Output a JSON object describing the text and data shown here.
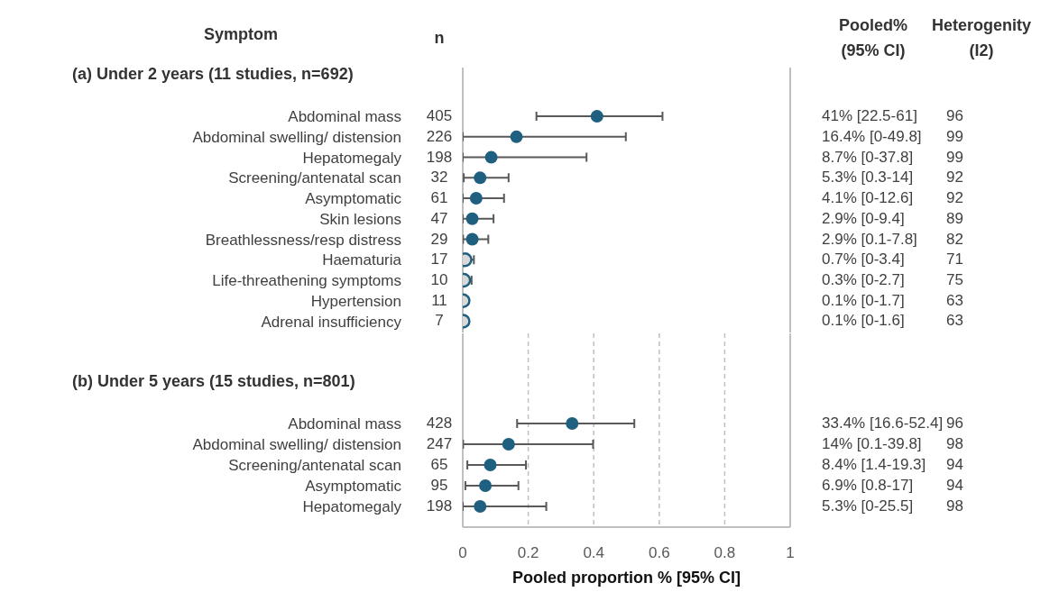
{
  "chart_data": [
    {
      "type": "scatter",
      "title": "(a) Under 2 years (11 studies, n=692)",
      "ylabel": "Symptom",
      "orientation": "horizontal",
      "tick_labels": "y",
      "grid": "x",
      "marker": "circle",
      "categories": [
        "Abdominal mass",
        "Abdominal swelling/ distension",
        "Hepatomegaly",
        "Screening/antenatal scan",
        "Asymptomatic",
        "Skin lesions",
        "Breathlessness/resp distress",
        "Haematuria",
        "Life-threathening symptoms",
        "Hypertension",
        "Adrenal insufficiency"
      ],
      "values": [
        0.41,
        0.164,
        0.087,
        0.053,
        0.041,
        0.029,
        0.029,
        0.007,
        0.003,
        0.001,
        0.001
      ],
      "errors": [
        [
          0.225,
          0.61
        ],
        [
          0,
          0.498
        ],
        [
          0,
          0.378
        ],
        [
          0.003,
          0.14
        ],
        [
          0,
          0.126
        ],
        [
          0,
          0.094
        ],
        [
          0.001,
          0.078
        ],
        [
          0,
          0.034
        ],
        [
          0,
          0.027
        ],
        [
          0,
          0.017
        ],
        [
          0,
          0.016
        ]
      ],
      "colors": [
        "#1f5f80",
        "#1f5f80",
        "#1f5f80",
        "#1f5f80",
        "#1f5f80",
        "#1f5f80",
        "#1f5f80",
        "#d9d9d9",
        "#d9d9d9",
        "#d9d9d9",
        "#d9d9d9"
      ],
      "xlim": [
        0,
        1
      ],
      "xticks": [
        0,
        0.2,
        0.4,
        0.6,
        0.8,
        1
      ],
      "annotations": [
        "405",
        "41% [22.5-61]",
        "96",
        "226",
        "16.4% [0-49.8]",
        "99",
        "198",
        "8.7% [0-37.8]",
        "99",
        "32",
        "5.3% [0.3-14]",
        "92",
        "61",
        "4.1% [0-12.6]",
        "92",
        "47",
        "2.9% [0-9.4]",
        "89",
        "29",
        "2.9% [0.1-7.8]",
        "82",
        "17",
        "0.7% [0-3.4]",
        "71",
        "10",
        "0.3% [0-2.7]",
        "75",
        "11",
        "0.1% [0-1.7]",
        "63",
        "7",
        "0.1% [0-1.6]",
        "63",
        "n",
        "Pooled% (95% CI)",
        "Heterogenity (I2)"
      ]
    },
    {
      "type": "scatter",
      "title": "(b) Under 5 years (15 studies, n=801)",
      "xlabel": "Pooled proportion % [95% CI]",
      "orientation": "horizontal",
      "grid": "x",
      "marker": "circle",
      "categories": [
        "Abdominal mass",
        "Abdominal swelling/ distension",
        "Screening/antenatal scan",
        "Asymptomatic",
        "Hepatomegaly"
      ],
      "values": [
        0.334,
        0.14,
        0.084,
        0.069,
        0.053
      ],
      "errors": [
        [
          0.166,
          0.524
        ],
        [
          0.001,
          0.398
        ],
        [
          0.014,
          0.193
        ],
        [
          0.008,
          0.17
        ],
        [
          0,
          0.255
        ]
      ],
      "colors": [
        "#1f5f80",
        "#1f5f80",
        "#1f5f80",
        "#1f5f80",
        "#1f5f80"
      ],
      "xlim": [
        0,
        1
      ],
      "xticks": [
        0,
        0.2,
        0.4,
        0.6,
        0.8,
        1
      ],
      "annotations": [
        "428",
        "33.4% [16.6-52.4]",
        "96",
        "247",
        "14% [0.1-39.8]",
        "98",
        "65",
        "8.4% [1.4-19.3]",
        "94",
        "95",
        "6.9% [0.8-17]",
        "94",
        "198",
        "5.3% [0-25.5]",
        "98"
      ]
    }
  ]
}
